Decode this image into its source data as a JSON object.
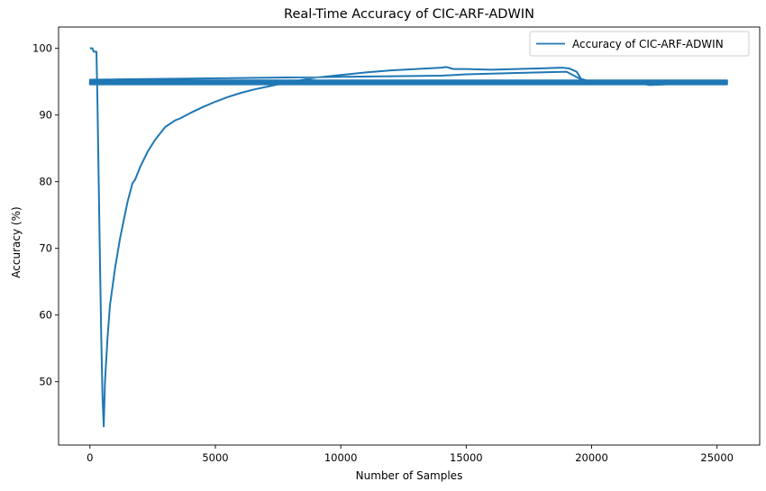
{
  "chart_data": {
    "type": "line",
    "title": "Real-Time Accuracy of CIC-ARF-ADWIN",
    "xlabel": "Number of Samples",
    "ylabel": "Accuracy (%)",
    "xlim": [
      -1250,
      26700
    ],
    "ylim": [
      40.5,
      103.2
    ],
    "xticks": [
      0,
      5000,
      10000,
      15000,
      20000,
      25000
    ],
    "yticks": [
      50,
      60,
      70,
      80,
      90,
      100
    ],
    "grid": false,
    "legend_position": "top-right",
    "series_color": "#1f77b4",
    "series": [
      {
        "name": "Accuracy of CIC-ARF-ADWIN",
        "x": [
          0,
          100,
          150,
          200,
          260,
          300,
          350,
          400,
          450,
          500,
          550,
          600,
          700,
          800,
          1000,
          1200,
          1500,
          1700,
          1800,
          2000,
          2300,
          2600,
          3000,
          3400,
          3600,
          4000,
          4500,
          5000,
          5500,
          6000,
          6500,
          7000,
          7500,
          8000,
          8500,
          9000,
          10000,
          11000,
          12000,
          12500,
          13000,
          14000,
          14200,
          14500,
          15000,
          16000,
          17000,
          18000,
          18800,
          19100,
          19400,
          19600,
          19800,
          20500,
          21000,
          22000,
          22300,
          23000,
          25400,
          25400,
          0,
          0,
          14000,
          15000,
          17000,
          19000,
          19500,
          20000,
          25400,
          25400,
          0,
          0,
          25400,
          25400,
          0,
          0,
          25400,
          25400,
          0,
          0,
          25400
        ],
        "y": [
          100,
          100,
          99.5,
          99.5,
          99.5,
          92,
          80,
          68,
          57,
          48,
          43.3,
          50,
          56.5,
          61.5,
          67,
          71.5,
          77,
          79.8,
          80.3,
          82.2,
          84.5,
          86.3,
          88.2,
          89.2,
          89.5,
          90.3,
          91.2,
          92,
          92.7,
          93.3,
          93.8,
          94.2,
          94.6,
          95,
          95.3,
          95.6,
          96,
          96.4,
          96.7,
          96.8,
          96.9,
          97.1,
          97.2,
          96.9,
          96.9,
          96.8,
          96.9,
          97,
          97.1,
          97,
          96.5,
          95.3,
          95,
          94.9,
          94.8,
          94.7,
          94.5,
          94.6,
          94.7,
          95.2,
          95.2,
          95.3,
          95.9,
          96.1,
          96.3,
          96.5,
          95.5,
          95,
          95,
          94.9,
          94.9,
          94.7,
          94.7,
          94.9,
          94.9,
          95.1,
          95.1,
          94.6,
          94.6,
          94.8,
          94.8
        ]
      }
    ]
  }
}
